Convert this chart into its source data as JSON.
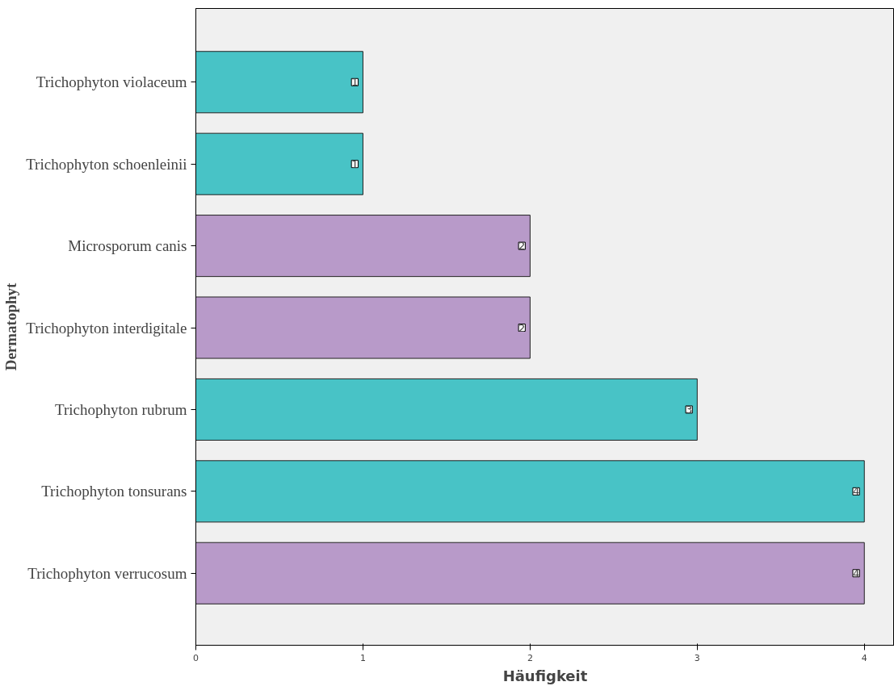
{
  "chart_data": {
    "type": "bar",
    "orientation": "horizontal",
    "xlabel": "Häufigkeit",
    "ylabel": "Dermatophyt",
    "categories": [
      "Trichophyton violaceum",
      "Trichophyton schoenleinii",
      "Microsporum canis",
      "Trichophyton interdigitale",
      "Trichophyton rubrum",
      "Trichophyton tonsurans",
      "Trichophyton verrucosum"
    ],
    "values": [
      1,
      1,
      2,
      2,
      3,
      4,
      4
    ],
    "colors": [
      "#48c3c6",
      "#48c3c6",
      "#b89ac9",
      "#b89ac9",
      "#48c3c6",
      "#48c3c6",
      "#b89ac9"
    ],
    "xlim": [
      0,
      4.18
    ],
    "xticks": [
      0,
      1,
      2,
      3,
      4
    ],
    "grid": false,
    "data_labels": true
  }
}
